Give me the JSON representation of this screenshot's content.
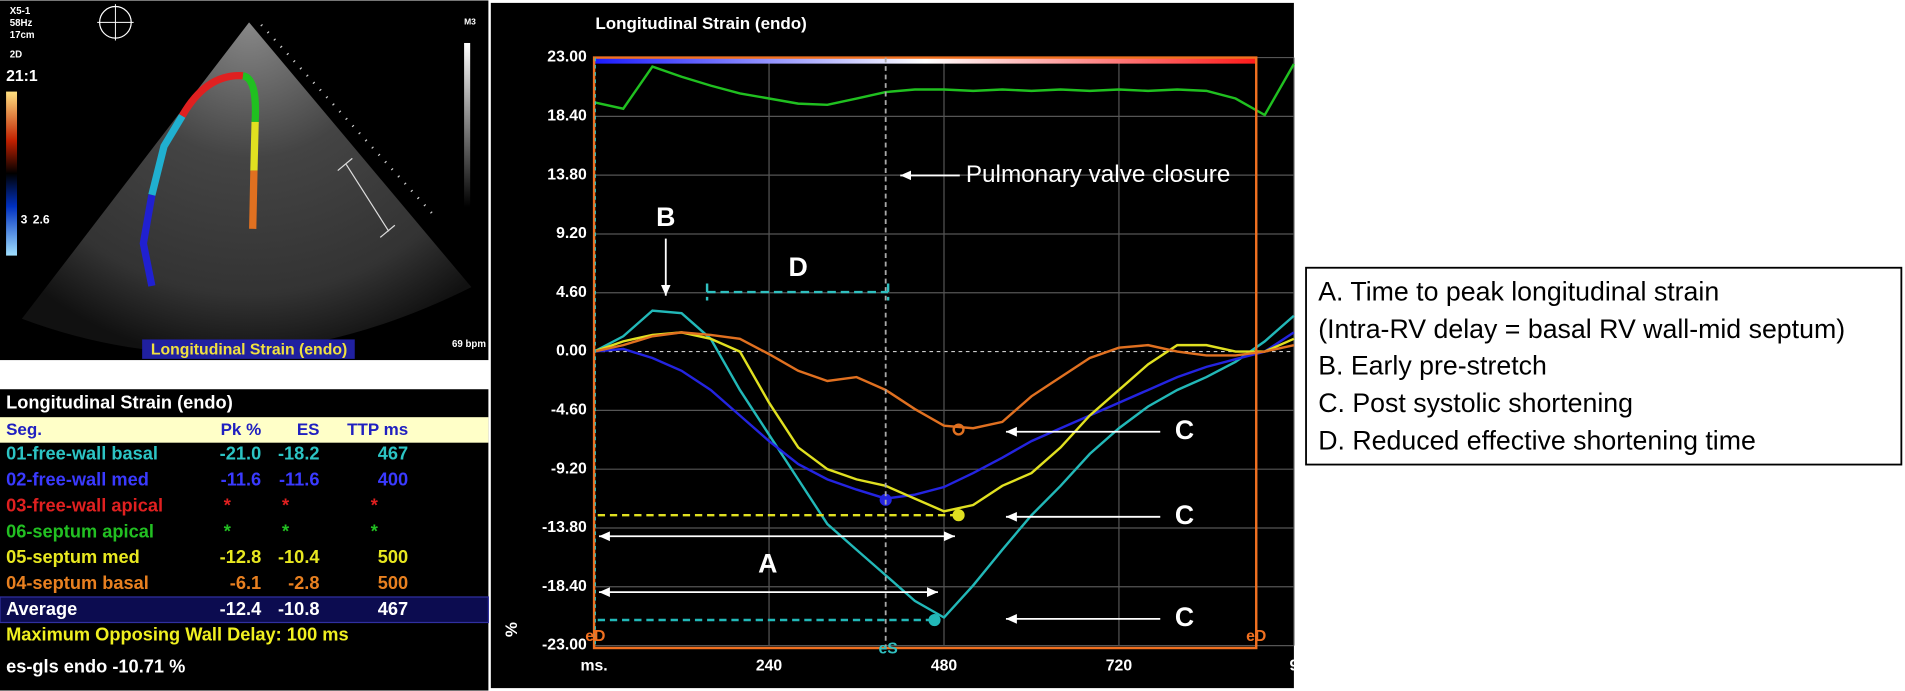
{
  "chart_data": {
    "type": "line",
    "title": "Longitudinal Strain (endo)",
    "y_label": "%",
    "x": [
      0,
      40,
      80,
      120,
      160,
      200,
      240,
      280,
      320,
      360,
      400,
      440,
      480,
      520,
      560,
      600,
      640,
      680,
      720,
      760,
      800,
      840,
      880,
      920,
      960
    ],
    "series": [
      {
        "color": "#22b8b8",
        "values": [
          0,
          1.2,
          3.2,
          3.0,
          1.0,
          -3,
          -6.5,
          -10,
          -13.5,
          -15.5,
          -17.5,
          -19.5,
          -20.8,
          -18.3,
          -15.5,
          -12.8,
          -10.5,
          -8,
          -6,
          -4.3,
          -3,
          -2,
          -0.8,
          0.8,
          2.8
        ]
      },
      {
        "color": "#2424e0",
        "values": [
          0,
          0.2,
          -0.5,
          -1.5,
          -3,
          -5,
          -7,
          -8.8,
          -10,
          -10.8,
          -11.5,
          -11.2,
          -10.6,
          -9.5,
          -8.3,
          -7,
          -6,
          -5,
          -4,
          -3,
          -2,
          -1.2,
          -0.6,
          0,
          1.5
        ]
      },
      {
        "color": "#e0e020",
        "values": [
          0,
          0.8,
          1.3,
          1.5,
          1.0,
          0,
          -4,
          -7.5,
          -9.2,
          -10,
          -10.5,
          -11.5,
          -12.5,
          -12,
          -10.5,
          -9.5,
          -7.5,
          -5,
          -3,
          -1,
          0.5,
          0.5,
          0,
          0,
          1
        ]
      },
      {
        "color": "#e07020",
        "values": [
          0,
          0.5,
          1.2,
          1.5,
          1.3,
          1.0,
          -0.2,
          -1.5,
          -2.3,
          -2,
          -3,
          -4.5,
          -5.8,
          -6,
          -5.5,
          -3.5,
          -2,
          -0.5,
          0.3,
          0.5,
          0,
          -0.3,
          -0.3,
          0,
          0.5
        ]
      },
      {
        "color": "#20c020",
        "values": [
          19.5,
          19,
          22.3,
          21.5,
          20.8,
          20.2,
          19.8,
          19.4,
          19.3,
          19.8,
          20.3,
          20.5,
          20.5,
          20.4,
          20.5,
          20.4,
          20.5,
          20.4,
          20.5,
          20.4,
          20.5,
          20.4,
          19.8,
          18.5,
          22.5
        ]
      }
    ],
    "xlim": [
      0,
      960
    ],
    "ylim": [
      -23,
      23
    ],
    "xticks": [
      {
        "value": 0,
        "label": "ms."
      },
      240,
      480,
      720,
      {
        "value": 960,
        "label": "9"
      }
    ],
    "yticks": [
      {
        "value": 23,
        "label": "23.00"
      },
      {
        "value": 18.4,
        "label": "18.40"
      },
      {
        "value": 13.8,
        "label": "13.80"
      },
      {
        "value": 9.2,
        "label": "9.20"
      },
      {
        "value": 4.6,
        "label": "4.60"
      },
      {
        "value": 0,
        "label": "0.00"
      },
      {
        "value": -4.6,
        "label": "-4.60"
      },
      {
        "value": -9.2,
        "label": "-9.20"
      },
      {
        "value": -13.8,
        "label": "-13.80"
      },
      {
        "value": -18.4,
        "label": "-18.40"
      },
      {
        "value": -23,
        "label": "-23.00"
      }
    ],
    "grid": true,
    "annotations": [
      "Pulmonary valve closure",
      "B",
      "D",
      "A",
      "C",
      "C",
      "C",
      "eD",
      "eS",
      "eD"
    ]
  },
  "echo": {
    "probe": "X5-1",
    "frame_rate": "58Hz",
    "depth": "17cm",
    "mode": "2D",
    "ratio": "21:1",
    "scale_left": "3",
    "scale_right": "2.6",
    "marker": "M3",
    "heart_rate": "69 bpm",
    "label": "Longitudinal Strain (endo)"
  },
  "table": {
    "title": "Longitudinal Strain (endo)",
    "columns": [
      "Seg.",
      "Pk %",
      "ES",
      "TTP ms"
    ],
    "rows": [
      {
        "color": "#2cc4c4",
        "cells": [
          "01-free-wall basal",
          "-21.0",
          "-18.2",
          "467"
        ]
      },
      {
        "color": "#3a3aff",
        "cells": [
          "02-free-wall med",
          "-11.6",
          "-11.6",
          "400"
        ]
      },
      {
        "color": "#e02020",
        "cells": [
          "03-free-wall apical",
          "*",
          "*",
          "*"
        ]
      },
      {
        "color": "#22c022",
        "cells": [
          "06-septum apical",
          "*",
          "*",
          "*"
        ]
      },
      {
        "color": "#e8e820",
        "cells": [
          "05-septum med",
          "-12.8",
          "-10.4",
          "500"
        ]
      },
      {
        "color": "#e88020",
        "cells": [
          "04-septum basal",
          "-6.1",
          "-2.8",
          "500"
        ]
      },
      {
        "color": "#ffffff",
        "cells": [
          "Average",
          "-12.4",
          "-10.8",
          "467"
        ]
      }
    ],
    "footer": [
      "Maximum Opposing Wall Delay: 100 ms",
      "es-gls endo -10.71 %"
    ]
  },
  "legend_box": {
    "lines": [
      "A. Time to peak longitudinal strain",
      "(Intra-RV delay = basal RV wall-mid septum)",
      "B. Early pre-stretch",
      "C. Post systolic shortening",
      "D. Reduced effective shortening time"
    ]
  }
}
